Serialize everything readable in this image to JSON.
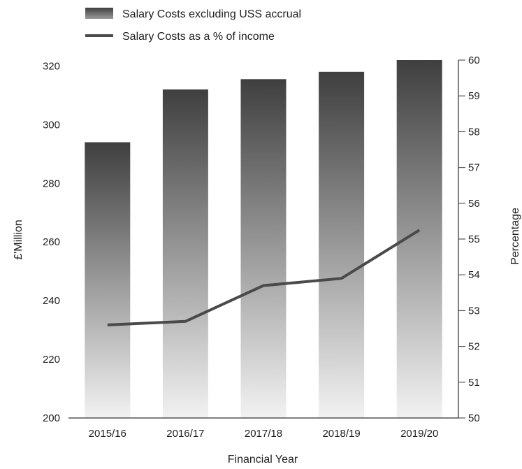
{
  "chart_data": {
    "type": "bar",
    "categories": [
      "2015/16",
      "2016/17",
      "2017/18",
      "2018/19",
      "2019/20"
    ],
    "series": [
      {
        "name": "Salary Costs excluding USS accrual",
        "kind": "bar",
        "axis": "left",
        "values": [
          294,
          312,
          315.5,
          318,
          322
        ]
      },
      {
        "name": "Salary Costs as a % of income",
        "kind": "line",
        "axis": "right",
        "values": [
          52.6,
          52.7,
          53.7,
          53.9,
          55.25
        ]
      }
    ],
    "xlabel": "Financial Year",
    "ylabel": "£'Million",
    "y2label": "Percentage",
    "ylim": [
      200,
      322
    ],
    "y2lim": [
      50,
      60
    ],
    "yticks": [
      "200",
      "220",
      "240",
      "260",
      "280",
      "300",
      "320"
    ],
    "y2ticks": [
      "50",
      "51",
      "52",
      "53",
      "54",
      "55",
      "56",
      "57",
      "58",
      "59",
      "60"
    ],
    "legend_position": "top-left",
    "grid": false,
    "colors": {
      "bar_top": "#3f3f3f",
      "bar_bottom": "#f2f2f2",
      "line": "#4a4a4a",
      "axis": "#555555"
    }
  }
}
